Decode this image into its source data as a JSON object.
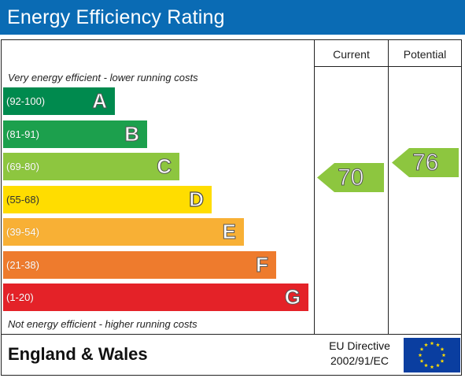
{
  "header": {
    "title": "Energy Efficiency Rating"
  },
  "columns": {
    "current": "Current",
    "potential": "Potential"
  },
  "notes": {
    "top": "Very energy efficient - lower running costs",
    "bottom": "Not energy efficient - higher running costs"
  },
  "chart_data": {
    "type": "bar",
    "categories": [
      "(92-100)",
      "(81-91)",
      "(69-80)",
      "(55-68)",
      "(39-54)",
      "(21-38)",
      "(1-20)"
    ],
    "bands": [
      {
        "range": "(92-100)",
        "letter": "A",
        "min": 92,
        "max": 100,
        "color": "#008a4e",
        "dark_text": false
      },
      {
        "range": "(81-91)",
        "letter": "B",
        "min": 81,
        "max": 91,
        "color": "#1ca04d",
        "dark_text": false
      },
      {
        "range": "(69-80)",
        "letter": "C",
        "min": 69,
        "max": 80,
        "color": "#8dc63f",
        "dark_text": false
      },
      {
        "range": "(55-68)",
        "letter": "D",
        "min": 55,
        "max": 68,
        "color": "#ffdd00",
        "dark_text": true
      },
      {
        "range": "(39-54)",
        "letter": "E",
        "min": 39,
        "max": 54,
        "color": "#f8b035",
        "dark_text": false
      },
      {
        "range": "(21-38)",
        "letter": "F",
        "min": 21,
        "max": 38,
        "color": "#ee7b2d",
        "dark_text": false
      },
      {
        "range": "(1-20)",
        "letter": "G",
        "min": 1,
        "max": 20,
        "color": "#e42228",
        "dark_text": false
      }
    ],
    "ratings": [
      {
        "column": "Current",
        "value": 70,
        "band": "C",
        "color": "#8dc63f"
      },
      {
        "column": "Potential",
        "value": 76,
        "band": "C",
        "color": "#8dc63f"
      }
    ]
  },
  "footer": {
    "region": "England & Wales",
    "directive_line1": "EU Directive",
    "directive_line2": "2002/91/EC"
  },
  "flag": {
    "background": "#0a3ea0",
    "star_color": "#ffdd00"
  }
}
